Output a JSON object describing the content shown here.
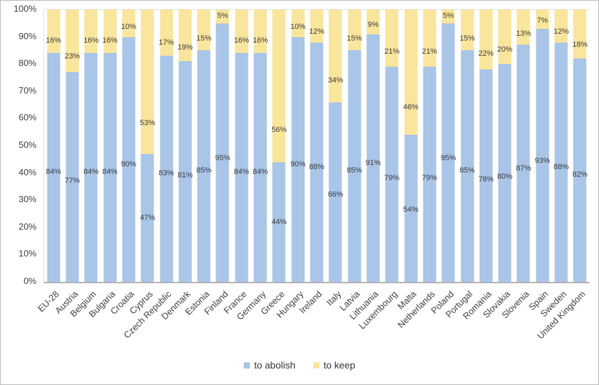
{
  "chart_data": {
    "type": "bar",
    "stacked": true,
    "title": "",
    "xlabel": "",
    "ylabel": "",
    "categories": [
      "EU-28",
      "Austria",
      "Belgium",
      "Bulgaria",
      "Croatia",
      "Cyprus",
      "Czech Republic",
      "Denmark",
      "Estonia",
      "Finland",
      "France",
      "Germany",
      "Greece",
      "Hungary",
      "Ireland",
      "Italy",
      "Latvia",
      "Lithuania",
      "Luxembourg",
      "Malta",
      "Netherlands",
      "Poland",
      "Portugal",
      "Romania",
      "Slovakia",
      "Slovenia",
      "Spain",
      "Sweden",
      "United Kingdom"
    ],
    "series": [
      {
        "name": "to abolish",
        "color": "#A9C5E8",
        "values": [
          84,
          77,
          84,
          84,
          90,
          47,
          83,
          81,
          85,
          95,
          84,
          84,
          44,
          90,
          88,
          66,
          85,
          91,
          79,
          54,
          79,
          95,
          85,
          78,
          80,
          87,
          93,
          88,
          82
        ]
      },
      {
        "name": "to keep",
        "color": "#F9E59B",
        "values": [
          16,
          23,
          16,
          16,
          10,
          53,
          17,
          19,
          15,
          5,
          16,
          16,
          56,
          10,
          12,
          34,
          15,
          9,
          21,
          46,
          21,
          5,
          15,
          22,
          20,
          13,
          7,
          12,
          18
        ]
      }
    ],
    "data_label_suffix": "%",
    "ylim": [
      0,
      100
    ],
    "y_ticks": [
      "100%",
      "90%",
      "80%",
      "70%",
      "60%",
      "50%",
      "40%",
      "30%",
      "20%",
      "10%",
      "0%"
    ],
    "grid": false,
    "legend_position": "bottom",
    "text_color": "#404040",
    "axis_line_color": "#b3b3b3"
  }
}
